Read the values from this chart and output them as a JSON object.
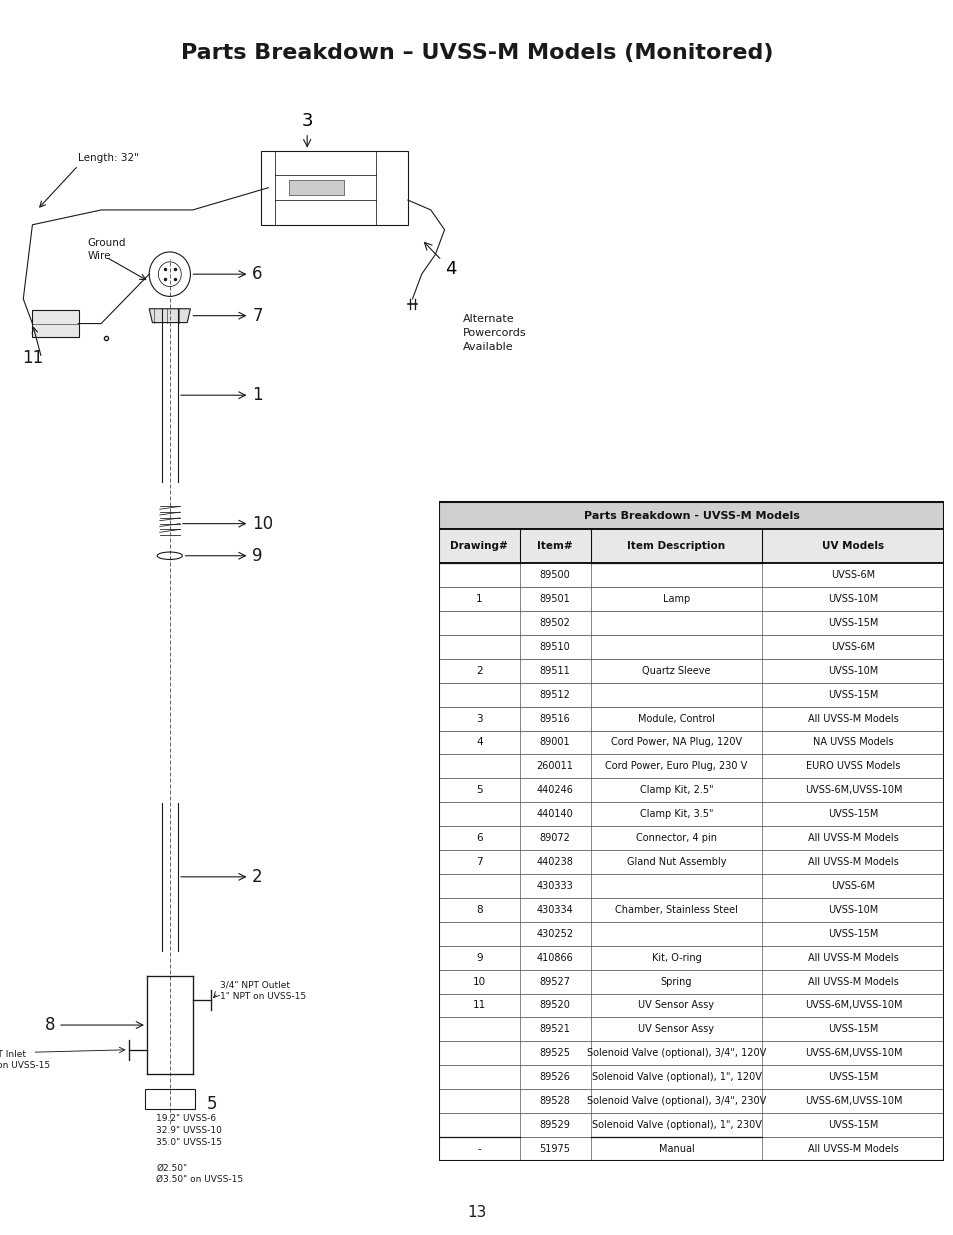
{
  "title": "Parts Breakdown – UVSS-M Models (Monitored)",
  "page_number": "13",
  "background_color": "#ffffff",
  "text_color": "#1a1a1a",
  "table_title": "Parts Breakdown - UVSS-M Models",
  "table_headers": [
    "Drawing#",
    "Item#",
    "Item Description",
    "UV Models"
  ],
  "table_rows": [
    [
      "",
      "89500",
      "",
      "UVSS-6M"
    ],
    [
      "1",
      "89501",
      "Lamp",
      "UVSS-10M"
    ],
    [
      "",
      "89502",
      "",
      "UVSS-15M"
    ],
    [
      "",
      "89510",
      "",
      "UVSS-6M"
    ],
    [
      "2",
      "89511",
      "Quartz Sleeve",
      "UVSS-10M"
    ],
    [
      "",
      "89512",
      "",
      "UVSS-15M"
    ],
    [
      "3",
      "89516",
      "Module, Control",
      "All UVSS-M Models"
    ],
    [
      "4",
      "89001",
      "Cord Power, NA Plug, 120V",
      "NA UVSS Models"
    ],
    [
      "",
      "260011",
      "Cord Power, Euro Plug, 230 V",
      "EURO UVSS Models"
    ],
    [
      "5",
      "440246",
      "Clamp Kit, 2.5\"",
      "UVSS-6M,UVSS-10M"
    ],
    [
      "",
      "440140",
      "Clamp Kit, 3.5\"",
      "UVSS-15M"
    ],
    [
      "6",
      "89072",
      "Connector, 4 pin",
      "All UVSS-M Models"
    ],
    [
      "7",
      "440238",
      "Gland Nut Assembly",
      "All UVSS-M Models"
    ],
    [
      "",
      "430333",
      "",
      "UVSS-6M"
    ],
    [
      "8",
      "430334",
      "Chamber, Stainless Steel",
      "UVSS-10M"
    ],
    [
      "",
      "430252",
      "",
      "UVSS-15M"
    ],
    [
      "9",
      "410866",
      "Kit, O-ring",
      "All UVSS-M Models"
    ],
    [
      "10",
      "89527",
      "Spring",
      "All UVSS-M Models"
    ],
    [
      "11",
      "89520",
      "UV Sensor Assy",
      "UVSS-6M,UVSS-10M"
    ],
    [
      "",
      "89521",
      "UV Sensor Assy",
      "UVSS-15M"
    ],
    [
      "",
      "89525",
      "Solenoid Valve (optional), 3/4\", 120V",
      "UVSS-6M,UVSS-10M"
    ],
    [
      "",
      "89526",
      "Solenoid Valve (optional), 1\", 120V",
      "UVSS-15M"
    ],
    [
      "",
      "89528",
      "Solenoid Valve (optional), 3/4\", 230V",
      "UVSS-6M,UVSS-10M"
    ],
    [
      "",
      "89529",
      "Solenoid Valve (optional), 1\", 230V",
      "UVSS-15M"
    ],
    [
      "-",
      "51975",
      "Manual",
      "All UVSS-M Models"
    ]
  ]
}
